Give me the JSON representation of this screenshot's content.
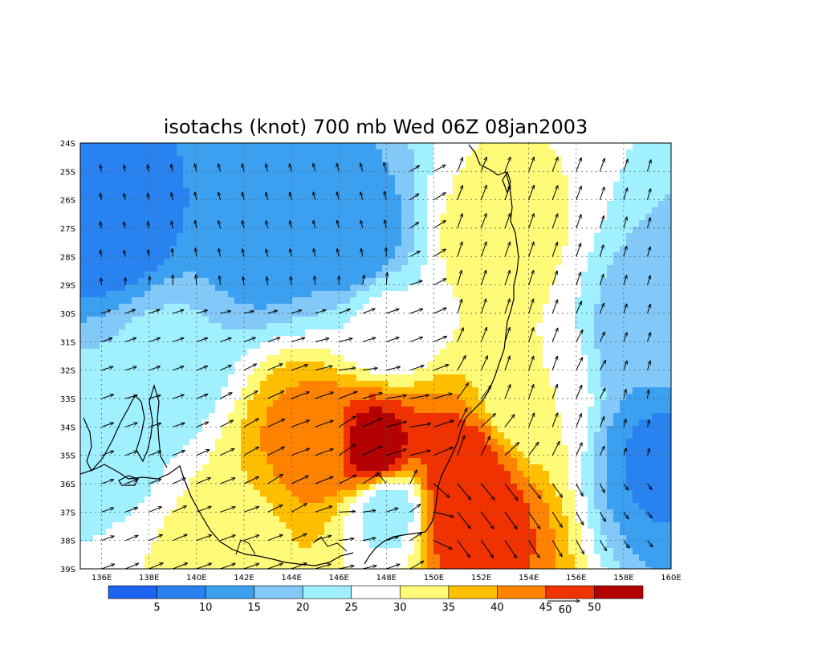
{
  "chart_data": {
    "type": "heatmap",
    "title": "isotachs (knot) 700 mb Wed 06Z 08jan2003",
    "xlabel": "",
    "ylabel": "",
    "x_ticks": [
      "136E",
      "138E",
      "140E",
      "142E",
      "144E",
      "146E",
      "148E",
      "150E",
      "152E",
      "154E",
      "156E",
      "158E",
      "160E"
    ],
    "y_ticks": [
      "24S",
      "25S",
      "26S",
      "27S",
      "28S",
      "29S",
      "30S",
      "31S",
      "32S",
      "33S",
      "34S",
      "35S",
      "36S",
      "37S",
      "38S",
      "39S"
    ],
    "xlim": [
      135.1,
      160
    ],
    "ylim": [
      -39,
      -24
    ],
    "grid": true,
    "color_levels": [
      5,
      10,
      15,
      20,
      25,
      30,
      35,
      40,
      45,
      50
    ],
    "colorbar_labels": [
      "5",
      "10",
      "15",
      "20",
      "25",
      "30",
      "35",
      "40",
      "45",
      "50"
    ],
    "colors": [
      "#1c64f0",
      "#2882f0",
      "#3ca0f0",
      "#82c8f8",
      "#a0f0ff",
      "#ffffff",
      "#fffa78",
      "#ffbe00",
      "#ff8200",
      "#f03200",
      "#b40000"
    ],
    "vector_reference": {
      "value": "60"
    },
    "speed_centers": [
      {
        "lon": 136.5,
        "lat": -27.2,
        "speed": 7
      },
      {
        "lon": 146.5,
        "lat": -27.5,
        "speed": 11
      },
      {
        "lon": 143.0,
        "lat": -27.0,
        "speed": 10
      },
      {
        "lon": 147.5,
        "lat": -34.8,
        "speed": 53
      },
      {
        "lon": 145.0,
        "lat": -34.5,
        "speed": 42
      },
      {
        "lon": 151.3,
        "lat": -37.1,
        "speed": 50
      },
      {
        "lon": 151.0,
        "lat": -35.5,
        "speed": 48
      },
      {
        "lon": 148.1,
        "lat": -36.9,
        "speed": 23
      },
      {
        "lon": 141.5,
        "lat": -38.2,
        "speed": 33
      },
      {
        "lon": 152.4,
        "lat": -27.5,
        "speed": 32
      },
      {
        "lon": 159.8,
        "lat": -35.0,
        "speed": 9
      },
      {
        "lon": 159.5,
        "lat": -31.0,
        "speed": 16
      },
      {
        "lon": 138.5,
        "lat": -31.5,
        "speed": 21
      },
      {
        "lon": 136.5,
        "lat": -34.5,
        "speed": 24
      },
      {
        "lon": 154.0,
        "lat": -33.0,
        "speed": 30
      },
      {
        "lon": 148.0,
        "lat": -30.5,
        "speed": 26
      }
    ]
  }
}
